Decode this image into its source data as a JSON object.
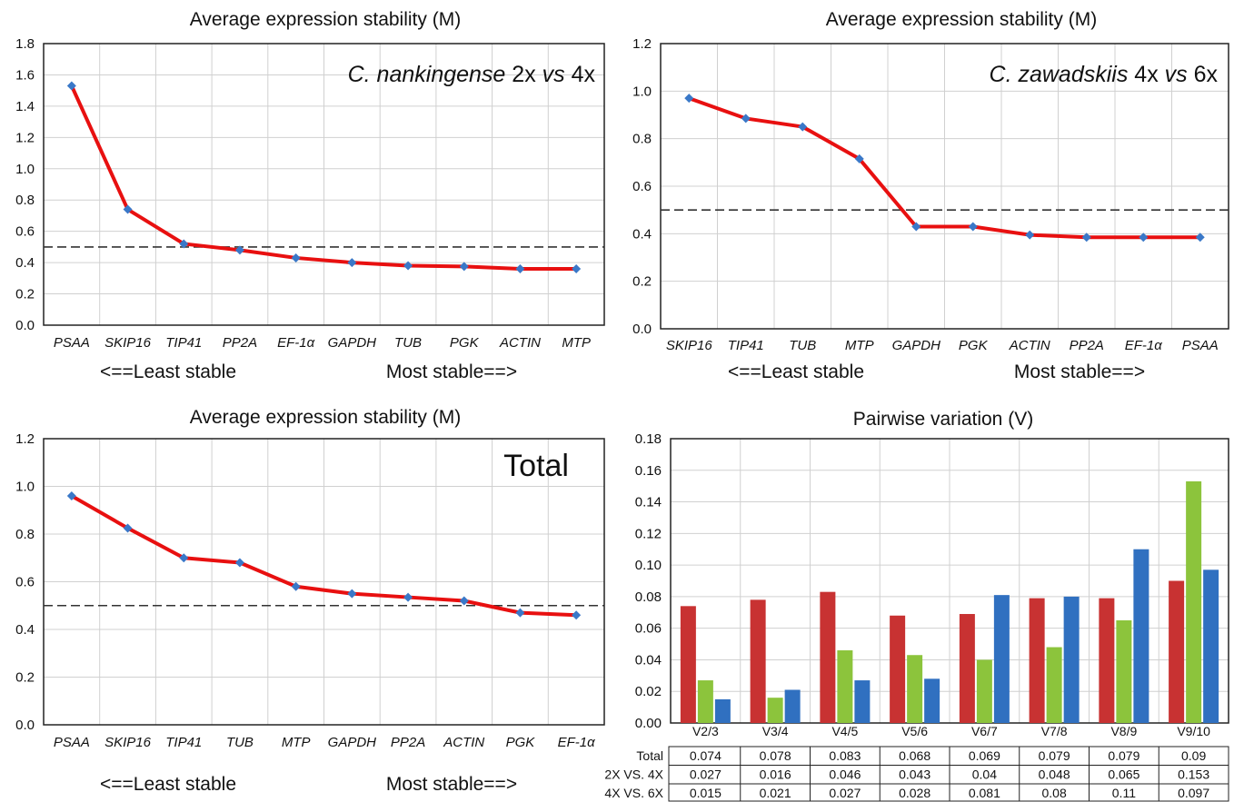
{
  "chart_data": [
    {
      "type": "line",
      "title": "Average expression stability (M)",
      "annotation": {
        "italic": "C. nankingense",
        "rest": " 2x ",
        "italic2": "vs",
        "rest2": " 4x"
      },
      "categories": [
        "PSAA",
        "SKIP16",
        "TIP41",
        "PP2A",
        "EF-1α",
        "GAPDH",
        "TUB",
        "PGK",
        "ACTIN",
        "MTP"
      ],
      "values": [
        1.53,
        0.74,
        0.52,
        0.48,
        0.43,
        0.4,
        0.38,
        0.375,
        0.36,
        0.36
      ],
      "ylim": [
        0,
        1.8
      ],
      "yticks": [
        "0.0",
        "0.2",
        "0.4",
        "0.6",
        "0.8",
        "1.0",
        "1.2",
        "1.4",
        "1.6",
        "1.8"
      ],
      "threshold": 0.5,
      "left_note": "<==Least stable",
      "right_note": "Most stable==>"
    },
    {
      "type": "line",
      "title": "Average expression stability (M)",
      "annotation": {
        "italic": "C. zawadskiis",
        "rest": " 4x ",
        "italic2": "vs",
        "rest2": " 6x"
      },
      "categories": [
        "SKIP16",
        "TIP41",
        "TUB",
        "MTP",
        "GAPDH",
        "PGK",
        "ACTIN",
        "PP2A",
        "EF-1α",
        "PSAA"
      ],
      "values": [
        0.97,
        0.885,
        0.85,
        0.715,
        0.43,
        0.43,
        0.395,
        0.385,
        0.385,
        0.385
      ],
      "ylim": [
        0,
        1.2
      ],
      "yticks": [
        "0.0",
        "0.2",
        "0.4",
        "0.6",
        "0.8",
        "1.0",
        "1.2"
      ],
      "threshold": 0.5,
      "left_note": "<==Least stable",
      "right_note": "Most stable==>"
    },
    {
      "type": "line",
      "title": "Average expression stability (M)",
      "annotation": {
        "plain": "Total"
      },
      "categories": [
        "PSAA",
        "SKIP16",
        "TIP41",
        "TUB",
        "MTP",
        "GAPDH",
        "PP2A",
        "ACTIN",
        "PGK",
        "EF-1α"
      ],
      "values": [
        0.96,
        0.825,
        0.7,
        0.68,
        0.58,
        0.55,
        0.535,
        0.52,
        0.47,
        0.46
      ],
      "ylim": [
        0,
        1.2
      ],
      "yticks": [
        "0.0",
        "0.2",
        "0.4",
        "0.6",
        "0.8",
        "1.0",
        "1.2"
      ],
      "threshold": 0.5,
      "left_note": "<==Least stable",
      "right_note": "Most stable==>"
    },
    {
      "type": "bar",
      "title": "Pairwise variation (V)",
      "categories": [
        "V2/3",
        "V3/4",
        "V4/5",
        "V5/6",
        "V6/7",
        "V7/8",
        "V8/9",
        "V9/10"
      ],
      "ylim": [
        0,
        0.18
      ],
      "yticks": [
        "0.00",
        "0.02",
        "0.04",
        "0.06",
        "0.08",
        "0.10",
        "0.12",
        "0.14",
        "0.16",
        "0.18"
      ],
      "series": [
        {
          "name": "Total",
          "color": "#c83232",
          "values": [
            0.074,
            0.078,
            0.083,
            0.068,
            0.069,
            0.079,
            0.079,
            0.09
          ],
          "labels": [
            "0.074",
            "0.078",
            "0.083",
            "0.068",
            "0.069",
            "0.079",
            "0.079",
            "0.09"
          ]
        },
        {
          "name": "2X VS. 4X",
          "color": "#8cc43c",
          "values": [
            0.027,
            0.016,
            0.046,
            0.043,
            0.04,
            0.048,
            0.065,
            0.153
          ],
          "labels": [
            "0.027",
            "0.016",
            "0.046",
            "0.043",
            "0.04",
            "0.048",
            "0.065",
            "0.153"
          ]
        },
        {
          "name": "4X VS. 6X",
          "color": "#3070c0",
          "values": [
            0.015,
            0.021,
            0.027,
            0.028,
            0.081,
            0.08,
            0.11,
            0.097
          ],
          "labels": [
            "0.015",
            "0.021",
            "0.027",
            "0.028",
            "0.081",
            "0.08",
            "0.11",
            "0.097"
          ]
        }
      ]
    }
  ]
}
